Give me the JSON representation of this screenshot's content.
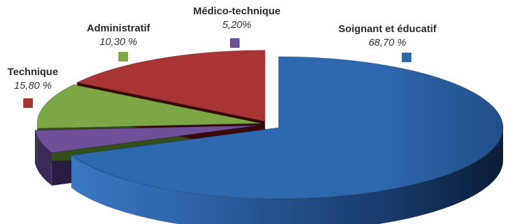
{
  "chart_data": {
    "type": "pie",
    "three_d": true,
    "exploded": true,
    "value_suffix": "%",
    "decimal_separator": ",",
    "slices": [
      {
        "label": "Soignant et éducatif",
        "value": 68.7,
        "display": "68,70 %",
        "color": "#2f69ad"
      },
      {
        "label": "Médico-technique",
        "value": 5.2,
        "display": "5,20%",
        "color": "#6f4f98"
      },
      {
        "label": "Administratif",
        "value": 10.3,
        "display": "10,30 %",
        "color": "#7ba745"
      },
      {
        "label": "Technique",
        "value": 15.8,
        "display": "15,80 %",
        "color": "#a83434"
      }
    ]
  }
}
